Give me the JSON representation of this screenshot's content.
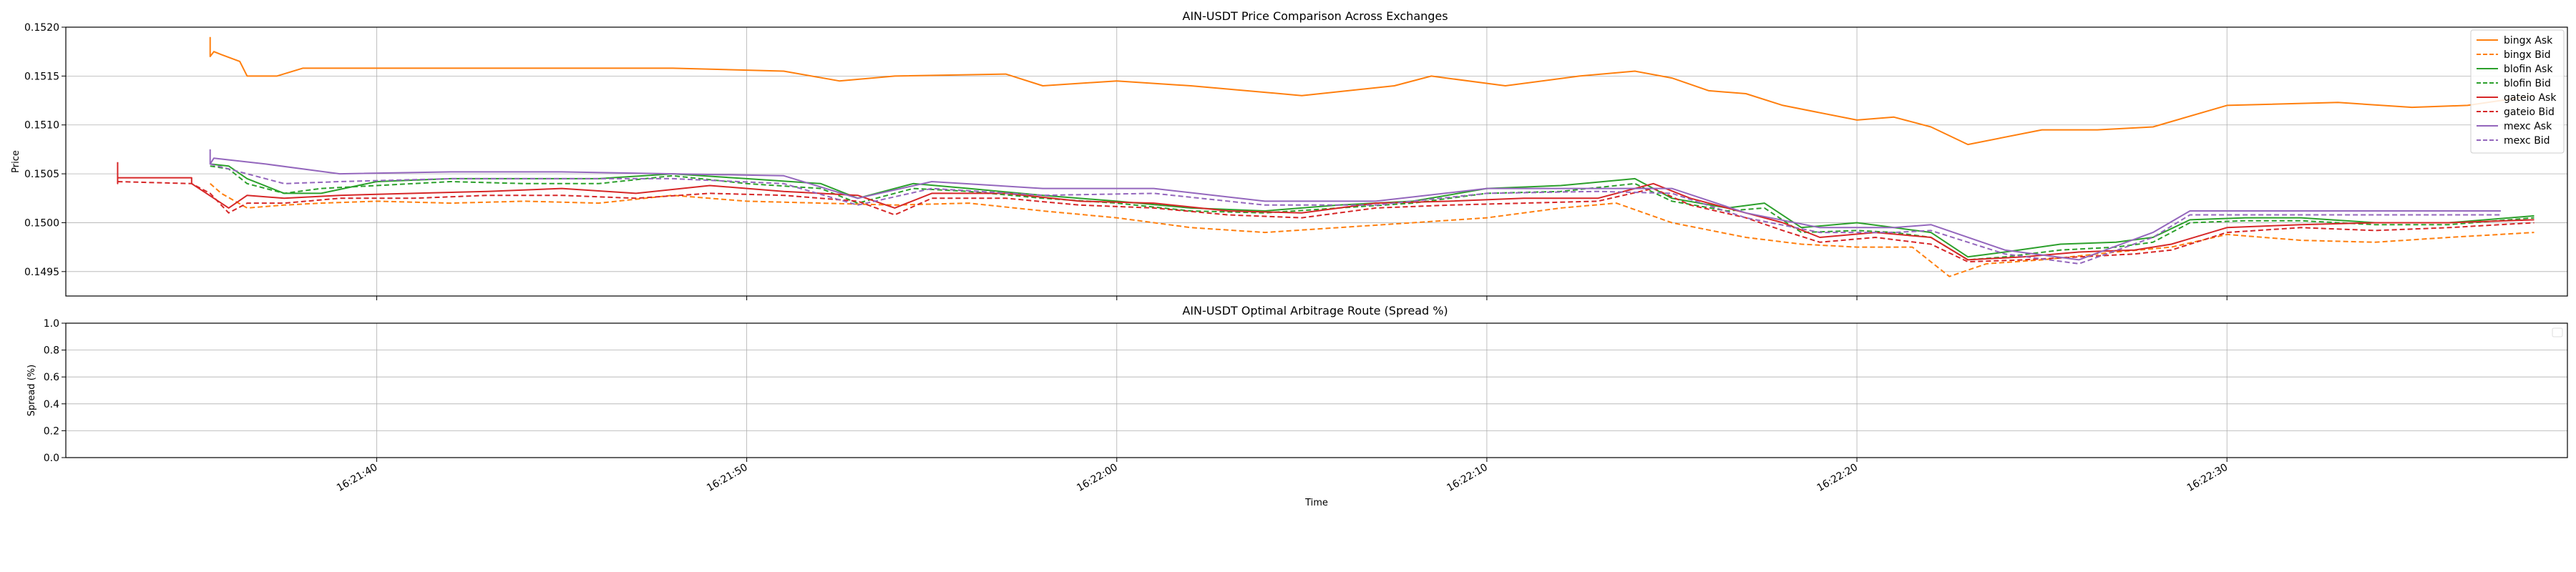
{
  "chart_data": [
    {
      "type": "line",
      "title": "AIN-USDT Price Comparison Across Exchanges",
      "xlabel": "",
      "ylabel": "Price",
      "ylim": [
        0.14925,
        0.152
      ],
      "xlim": [
        "16:21:31.6",
        "16:22:39.2"
      ],
      "yticks": [
        "0.1495",
        "0.1500",
        "0.1505",
        "0.1510",
        "0.1515",
        "0.1520"
      ],
      "xticks": [
        "16:21:40",
        "16:21:50",
        "16:22:00",
        "16:22:10",
        "16:22:20",
        "16:22:30"
      ],
      "grid": true,
      "legend_position": "top-right",
      "series": [
        {
          "name": "bingx Ask",
          "color": "#ff7f0e",
          "dash": "solid",
          "x": [
            "16:21:35.5",
            "16:21:35.5",
            "16:21:35.6",
            "16:21:35.8",
            "16:21:36.3",
            "16:21:36.5",
            "16:21:37.3",
            "16:21:38.0",
            "16:21:41.0",
            "16:21:43.0",
            "16:21:45.0",
            "16:21:48.0",
            "16:21:51.0",
            "16:21:52.5",
            "16:21:54.0",
            "16:21:57.0",
            "16:21:58.0",
            "16:22:00.0",
            "16:22:02.0",
            "16:22:05.0",
            "16:22:07.5",
            "16:22:08.5",
            "16:22:10.5",
            "16:22:12.5",
            "16:22:14.0",
            "16:22:15.0",
            "16:22:16.0",
            "16:22:17.0",
            "16:22:18.0",
            "16:22:20.0",
            "16:22:21.0",
            "16:22:22.0",
            "16:22:23.0",
            "16:22:25.0",
            "16:22:26.5",
            "16:22:28.0",
            "16:22:30.0",
            "16:22:33.0",
            "16:22:35.0",
            "16:22:36.5",
            "16:22:38.3"
          ],
          "values": [
            0.1519,
            0.1517,
            0.15175,
            0.15172,
            0.15165,
            0.1515,
            0.1515,
            0.15158,
            0.15158,
            0.15158,
            0.15158,
            0.15158,
            0.15155,
            0.15145,
            0.1515,
            0.15152,
            0.1514,
            0.15145,
            0.1514,
            0.1513,
            0.1514,
            0.1515,
            0.1514,
            0.1515,
            0.15155,
            0.15148,
            0.15135,
            0.15132,
            0.1512,
            0.15105,
            0.15108,
            0.15098,
            0.1508,
            0.15095,
            0.15095,
            0.15098,
            0.1512,
            0.15123,
            0.15118,
            0.1512,
            0.1513
          ]
        },
        {
          "name": "bingx Bid",
          "color": "#ff7f0e",
          "dash": "dashed",
          "x": [
            "16:21:35.5",
            "16:21:35.8",
            "16:21:36.5",
            "16:21:37.5",
            "16:21:38.5",
            "16:21:40.0",
            "16:21:42.0",
            "16:21:44.0",
            "16:21:46.0",
            "16:21:48.0",
            "16:21:50.0",
            "16:21:52.0",
            "16:21:54.0",
            "16:21:56.0",
            "16:21:58.0",
            "16:22:00.0",
            "16:22:02.0",
            "16:22:04.0",
            "16:22:06.0",
            "16:22:08.0",
            "16:22:10.0",
            "16:22:12.0",
            "16:22:13.5",
            "16:22:15.0",
            "16:22:17.0",
            "16:22:18.5",
            "16:22:20.0",
            "16:22:21.5",
            "16:22:22.5",
            "16:22:23.5",
            "16:22:25.0",
            "16:22:27.0",
            "16:22:28.5",
            "16:22:30.0",
            "16:22:32.0",
            "16:22:34.0",
            "16:22:36.0",
            "16:22:38.3"
          ],
          "values": [
            0.1504,
            0.1503,
            0.15015,
            0.15018,
            0.1502,
            0.15022,
            0.1502,
            0.15022,
            0.1502,
            0.15028,
            0.15022,
            0.1502,
            0.15018,
            0.1502,
            0.15012,
            0.15005,
            0.14995,
            0.1499,
            0.14995,
            0.15,
            0.15005,
            0.15015,
            0.1502,
            0.15,
            0.14985,
            0.14978,
            0.14975,
            0.14975,
            0.14945,
            0.14958,
            0.14962,
            0.1497,
            0.14975,
            0.14988,
            0.14982,
            0.1498,
            0.14985,
            0.1499
          ]
        },
        {
          "name": "blofin Ask",
          "color": "#2ca02c",
          "dash": "solid",
          "x": [
            "16:21:35.5",
            "16:21:36.0",
            "16:21:36.5",
            "16:21:37.5",
            "16:21:38.5",
            "16:21:40.0",
            "16:21:42.0",
            "16:21:44.0",
            "16:21:46.0",
            "16:21:48.0",
            "16:21:50.0",
            "16:21:52.0",
            "16:21:53.0",
            "16:21:54.5",
            "16:21:56.0",
            "16:21:58.0",
            "16:22:00.0",
            "16:22:02.0",
            "16:22:04.0",
            "16:22:06.0",
            "16:22:08.0",
            "16:22:10.0",
            "16:22:12.0",
            "16:22:14.0",
            "16:22:15.0",
            "16:22:16.5",
            "16:22:17.5",
            "16:22:18.5",
            "16:22:20.0",
            "16:22:21.0",
            "16:22:22.0",
            "16:22:23.0",
            "16:22:24.0",
            "16:22:25.5",
            "16:22:27.0",
            "16:22:28.0",
            "16:22:29.0",
            "16:22:30.5",
            "16:22:32.0",
            "16:22:34.0",
            "16:22:36.0",
            "16:22:38.3"
          ],
          "values": [
            0.1506,
            0.15058,
            0.15045,
            0.1503,
            0.1503,
            0.15042,
            0.15045,
            0.15045,
            0.15045,
            0.1505,
            0.15045,
            0.1504,
            0.15025,
            0.1504,
            0.15035,
            0.15028,
            0.15022,
            0.15015,
            0.15012,
            0.15018,
            0.15022,
            0.15035,
            0.15038,
            0.15045,
            0.15025,
            0.15015,
            0.1502,
            0.14995,
            0.15,
            0.14995,
            0.1499,
            0.14965,
            0.1497,
            0.14978,
            0.1498,
            0.14985,
            0.15003,
            0.15005,
            0.15005,
            0.15,
            0.15,
            0.15007
          ]
        },
        {
          "name": "blofin Bid",
          "color": "#2ca02c",
          "dash": "dashed",
          "x": [
            "16:21:35.5",
            "16:21:36.0",
            "16:21:36.5",
            "16:21:37.5",
            "16:21:38.5",
            "16:21:40.0",
            "16:21:42.0",
            "16:21:44.0",
            "16:21:46.0",
            "16:21:48.0",
            "16:21:50.0",
            "16:21:52.0",
            "16:21:53.0",
            "16:21:54.5",
            "16:21:56.0",
            "16:21:58.0",
            "16:22:00.0",
            "16:22:02.0",
            "16:22:04.0",
            "16:22:06.0",
            "16:22:08.0",
            "16:22:10.0",
            "16:22:12.0",
            "16:22:14.0",
            "16:22:15.0",
            "16:22:16.5",
            "16:22:17.5",
            "16:22:18.5",
            "16:22:20.0",
            "16:22:21.0",
            "16:22:22.0",
            "16:22:23.0",
            "16:22:24.0",
            "16:22:25.5",
            "16:22:27.0",
            "16:22:28.0",
            "16:22:29.0",
            "16:22:30.5",
            "16:22:32.0",
            "16:22:34.0",
            "16:22:36.0",
            "16:22:38.3"
          ],
          "values": [
            0.15058,
            0.15055,
            0.1504,
            0.1503,
            0.15035,
            0.15038,
            0.15042,
            0.1504,
            0.1504,
            0.15048,
            0.1504,
            0.15035,
            0.1502,
            0.15035,
            0.15032,
            0.15025,
            0.1502,
            0.15012,
            0.1501,
            0.15015,
            0.1502,
            0.1503,
            0.15032,
            0.1504,
            0.15022,
            0.15012,
            0.15015,
            0.1499,
            0.14992,
            0.1499,
            0.14985,
            0.14962,
            0.14965,
            0.14972,
            0.14975,
            0.1498,
            0.15,
            0.15002,
            0.15002,
            0.14998,
            0.14998,
            0.15005
          ]
        },
        {
          "name": "gateio Ask",
          "color": "#d62728",
          "dash": "solid",
          "x": [
            "16:21:33.0",
            "16:21:33.0",
            "16:21:33.0",
            "16:21:35.0",
            "16:21:35.0",
            "16:21:36.0",
            "16:21:36.5",
            "16:21:37.5",
            "16:21:39.0",
            "16:21:41.0",
            "16:21:43.0",
            "16:21:45.0",
            "16:21:47.0",
            "16:21:49.0",
            "16:21:51.0",
            "16:21:53.0",
            "16:21:54.0",
            "16:21:55.0",
            "16:21:57.0",
            "16:21:59.0",
            "16:22:01.0",
            "16:22:03.0",
            "16:22:05.0",
            "16:22:07.0",
            "16:22:09.0",
            "16:22:11.0",
            "16:22:13.0",
            "16:22:14.5",
            "16:22:15.5",
            "16:22:17.0",
            "16:22:18.0",
            "16:22:19.0",
            "16:22:20.5",
            "16:22:22.0",
            "16:22:23.0",
            "16:22:24.5",
            "16:22:26.0",
            "16:22:27.5",
            "16:22:28.5",
            "16:22:30.0",
            "16:22:32.0",
            "16:22:34.0",
            "16:22:36.0",
            "16:22:38.3"
          ],
          "values": [
            0.15062,
            0.1504,
            0.15046,
            0.15046,
            0.1504,
            0.15015,
            0.15028,
            0.15025,
            0.15028,
            0.1503,
            0.15032,
            0.15035,
            0.1503,
            0.15038,
            0.15032,
            0.15028,
            0.15015,
            0.1503,
            0.1503,
            0.15022,
            0.1502,
            0.15012,
            0.1501,
            0.1502,
            0.15022,
            0.15025,
            0.15025,
            0.1504,
            0.15025,
            0.1501,
            0.15,
            0.14985,
            0.1499,
            0.14985,
            0.14962,
            0.14965,
            0.1497,
            0.14972,
            0.14978,
            0.14995,
            0.14998,
            0.15,
            0.15,
            0.15003
          ]
        },
        {
          "name": "gateio Bid",
          "color": "#d62728",
          "dash": "dashed",
          "x": [
            "16:21:33.0",
            "16:21:35.0",
            "16:21:35.5",
            "16:21:36.0",
            "16:21:36.5",
            "16:21:37.5",
            "16:21:39.0",
            "16:21:41.0",
            "16:21:43.0",
            "16:21:45.0",
            "16:21:47.0",
            "16:21:49.0",
            "16:21:51.0",
            "16:21:53.0",
            "16:21:54.0",
            "16:21:55.0",
            "16:21:57.0",
            "16:21:59.0",
            "16:22:01.0",
            "16:22:03.0",
            "16:22:05.0",
            "16:22:07.0",
            "16:22:09.0",
            "16:22:11.0",
            "16:22:13.0",
            "16:22:14.5",
            "16:22:15.5",
            "16:22:17.0",
            "16:22:18.0",
            "16:22:19.0",
            "16:22:20.5",
            "16:22:22.0",
            "16:22:23.0",
            "16:22:24.5",
            "16:22:26.0",
            "16:22:27.5",
            "16:22:28.5",
            "16:22:30.0",
            "16:22:32.0",
            "16:22:34.0",
            "16:22:36.0",
            "16:22:38.3"
          ],
          "values": [
            0.15042,
            0.1504,
            0.1503,
            0.1501,
            0.1502,
            0.1502,
            0.15025,
            0.15025,
            0.15028,
            0.15028,
            0.15025,
            0.1503,
            0.15028,
            0.15022,
            0.15008,
            0.15025,
            0.15025,
            0.15018,
            0.15015,
            0.15008,
            0.15005,
            0.15015,
            0.15018,
            0.1502,
            0.15022,
            0.15035,
            0.15018,
            0.15005,
            0.14992,
            0.1498,
            0.14985,
            0.14978,
            0.1496,
            0.14962,
            0.14965,
            0.14968,
            0.14972,
            0.1499,
            0.14995,
            0.14992,
            0.14995,
            0.15
          ]
        },
        {
          "name": "mexc Ask",
          "color": "#9467bd",
          "dash": "solid",
          "x": [
            "16:21:35.5",
            "16:21:35.5",
            "16:21:35.6",
            "16:21:37.0",
            "16:21:39.0",
            "16:21:42.0",
            "16:21:45.0",
            "16:21:48.0",
            "16:21:51.0",
            "16:21:53.0",
            "16:21:55.0",
            "16:21:58.0",
            "16:22:01.0",
            "16:22:04.0",
            "16:22:07.0",
            "16:22:10.0",
            "16:22:13.0",
            "16:22:15.0",
            "16:22:17.0",
            "16:22:19.0",
            "16:22:21.0",
            "16:22:22.0",
            "16:22:24.0",
            "16:22:26.0",
            "16:22:28.0",
            "16:22:29.0",
            "16:22:32.0",
            "16:22:35.0",
            "16:22:37.4"
          ],
          "values": [
            0.15075,
            0.1506,
            0.15066,
            0.1506,
            0.1505,
            0.15052,
            0.15052,
            0.1505,
            0.15048,
            0.15025,
            0.15042,
            0.15035,
            0.15035,
            0.15022,
            0.15022,
            0.15035,
            0.15035,
            0.15035,
            0.1501,
            0.14995,
            0.14995,
            0.14998,
            0.14972,
            0.14962,
            0.1499,
            0.15012,
            0.15012,
            0.15012,
            0.15012
          ]
        },
        {
          "name": "mexc Bid",
          "color": "#9467bd",
          "dash": "dashed",
          "x": [
            "16:21:35.5",
            "16:21:36.0",
            "16:21:37.5",
            "16:21:39.0",
            "16:21:42.0",
            "16:21:45.0",
            "16:21:48.0",
            "16:21:51.0",
            "16:21:53.0",
            "16:21:55.0",
            "16:21:58.0",
            "16:22:01.0",
            "16:22:04.0",
            "16:22:07.0",
            "16:22:10.0",
            "16:22:13.0",
            "16:22:15.0",
            "16:22:17.0",
            "16:22:19.0",
            "16:22:21.0",
            "16:22:22.0",
            "16:22:24.0",
            "16:22:26.0",
            "16:22:28.0",
            "16:22:29.0",
            "16:22:32.0",
            "16:22:35.0",
            "16:22:37.4"
          ],
          "values": [
            0.1506,
            0.15055,
            0.1504,
            0.15042,
            0.15045,
            0.15045,
            0.15045,
            0.1504,
            0.15018,
            0.15035,
            0.15028,
            0.1503,
            0.15018,
            0.15018,
            0.1503,
            0.15032,
            0.1503,
            0.15005,
            0.1499,
            0.1499,
            0.14992,
            0.14968,
            0.14958,
            0.14985,
            0.15008,
            0.15008,
            0.15008,
            0.15008
          ]
        }
      ]
    },
    {
      "type": "line",
      "title": "AIN-USDT Optimal Arbitrage Route (Spread %)",
      "xlabel": "Time",
      "ylabel": "Spread (%)",
      "ylim": [
        0.0,
        1.0
      ],
      "yticks": [
        "0.0",
        "0.2",
        "0.4",
        "0.6",
        "0.8",
        "1.0"
      ],
      "xticks": [
        "16:21:40",
        "16:21:50",
        "16:22:00",
        "16:22:10",
        "16:22:20",
        "16:22:30"
      ],
      "grid": true,
      "legend_position": "top-right",
      "series": []
    }
  ]
}
